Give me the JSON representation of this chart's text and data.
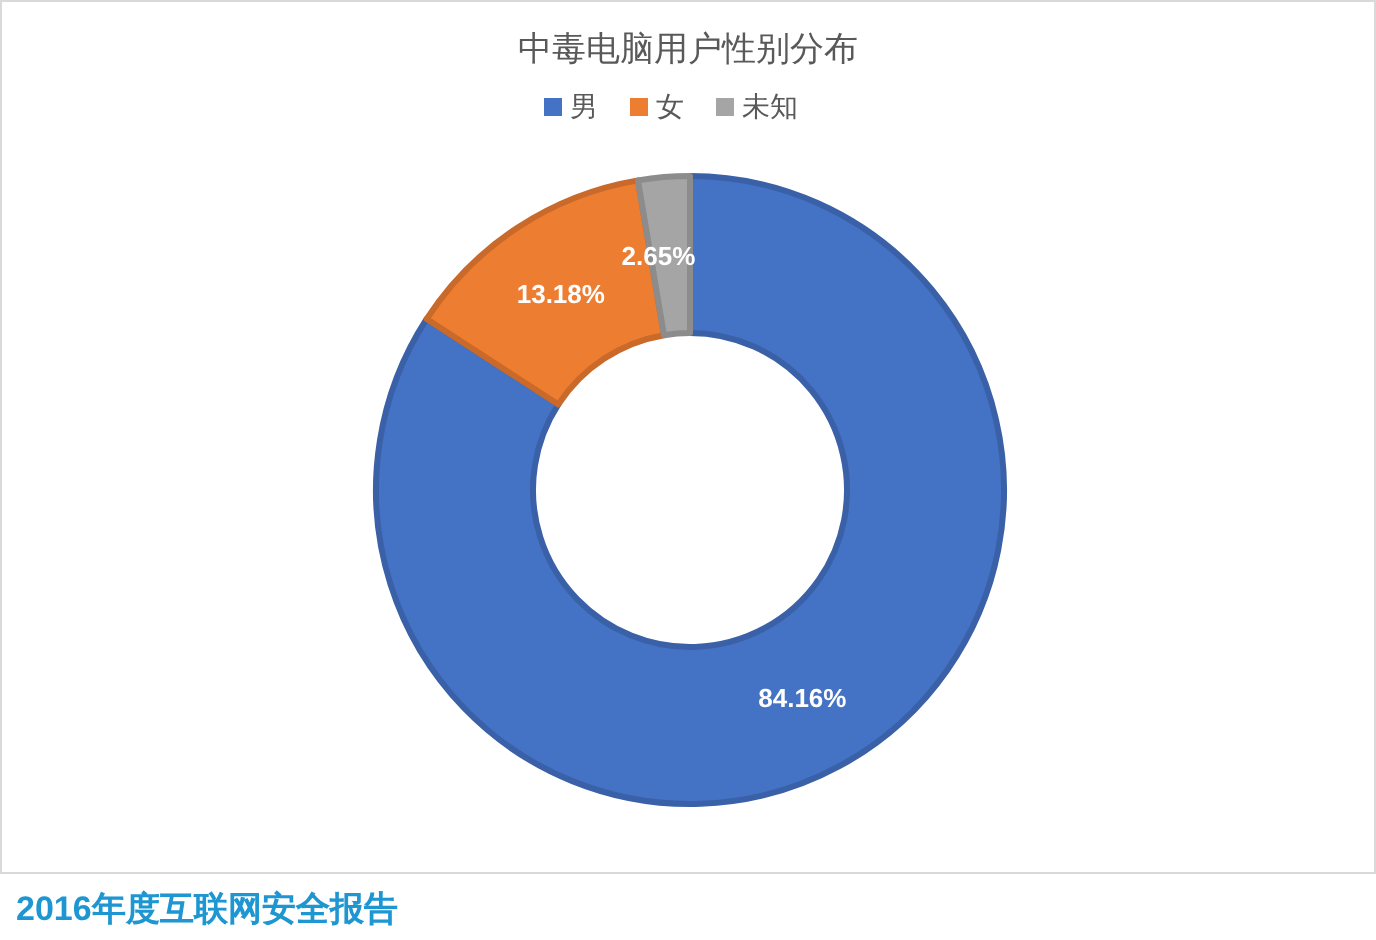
{
  "chart_data": {
    "type": "donut",
    "title": "中毒电脑用户性别分布",
    "categories": [
      "男",
      "女",
      "未知"
    ],
    "values": [
      84.16,
      13.18,
      2.65
    ],
    "colors": [
      "#4472c4",
      "#ed7d31",
      "#a5a5a5"
    ],
    "value_labels": [
      "84.16%",
      "13.18%",
      "2.65%"
    ],
    "legend": "top",
    "annotations": [
      "2016年度互联网安全报告"
    ]
  }
}
